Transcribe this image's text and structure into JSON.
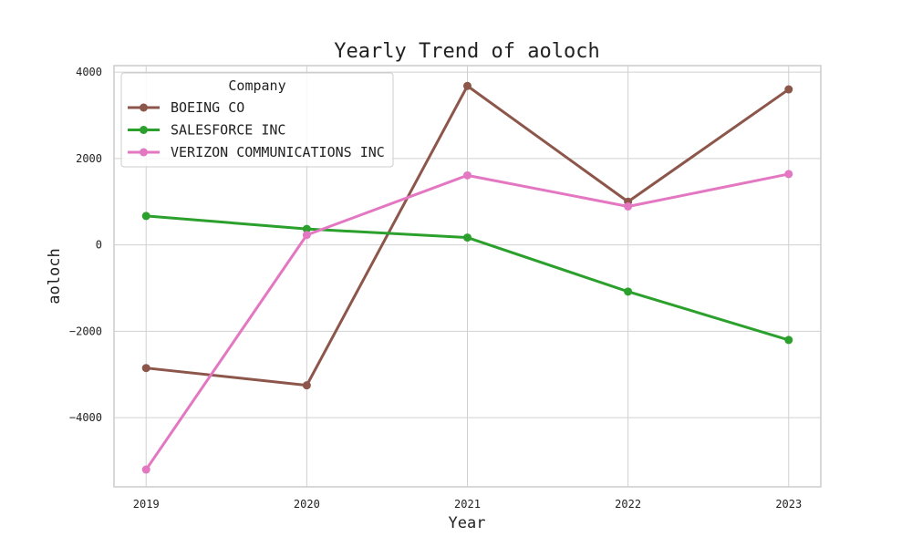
{
  "chart_data": {
    "type": "line",
    "title": "Yearly Trend of aoloch",
    "xlabel": "Year",
    "ylabel": "aoloch",
    "x": [
      "2019",
      "2020",
      "2021",
      "2022",
      "2023"
    ],
    "xlim": [
      2018.8,
      2023.2
    ],
    "ylim": [
      -5600,
      4150
    ],
    "yticks": [
      4000,
      2000,
      0,
      -2000,
      -4000
    ],
    "ytick_labels": [
      "4000",
      "2000",
      "0",
      "−2000",
      "−4000"
    ],
    "grid": true,
    "legend": {
      "title": "Company",
      "placement": "top-left"
    },
    "series": [
      {
        "name": "BOEING CO",
        "color": "#8c564b",
        "values": [
          -2850,
          -3250,
          3680,
          1000,
          3600
        ]
      },
      {
        "name": "SALESFORCE INC",
        "color": "#2ca02c",
        "values": [
          670,
          370,
          170,
          -1080,
          -2200
        ]
      },
      {
        "name": "VERIZON COMMUNICATIONS INC",
        "color": "#e377c2",
        "values": [
          -5200,
          230,
          1610,
          890,
          1640
        ]
      }
    ]
  }
}
